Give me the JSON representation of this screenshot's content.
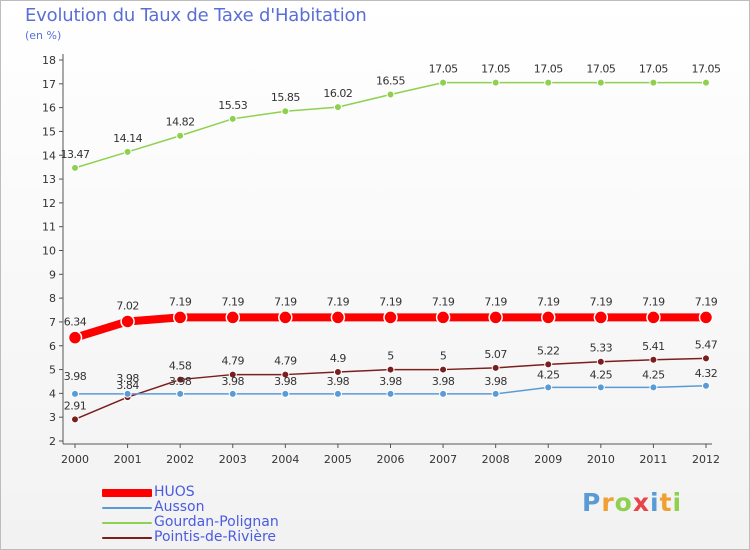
{
  "chart_data": {
    "type": "line",
    "title": "Evolution du Taux de Taxe d'Habitation",
    "subtitle": "(en %)",
    "ylim": [
      2,
      18
    ],
    "yticks": [
      2,
      3,
      4,
      5,
      6,
      7,
      8,
      9,
      10,
      11,
      12,
      13,
      14,
      15,
      16,
      17,
      18
    ],
    "x": [
      "2000",
      "2001",
      "2002",
      "2003",
      "2004",
      "2005",
      "2006",
      "2007",
      "2008",
      "2009",
      "2010",
      "2011",
      "2012"
    ],
    "grid": false,
    "legend_position": "bottom-left",
    "series": [
      {
        "name": "HUOS",
        "color": "#ff0000",
        "values": [
          6.34,
          7.02,
          7.19,
          7.19,
          7.19,
          7.19,
          7.19,
          7.19,
          7.19,
          7.19,
          7.19,
          7.19,
          7.19
        ],
        "labels": [
          "6.34",
          "7.02",
          "7.19",
          "7.19",
          "7.19",
          "7.19",
          "7.19",
          "7.19",
          "7.19",
          "7.19",
          "7.19",
          "7.19",
          "7.19"
        ]
      },
      {
        "name": "Ausson",
        "color": "#5b9bd5",
        "values": [
          3.98,
          3.98,
          3.98,
          3.98,
          3.98,
          3.98,
          3.98,
          3.98,
          3.98,
          4.25,
          4.25,
          4.25,
          4.32
        ],
        "labels": [
          "3.98",
          "3.98",
          "3.98",
          "3.98",
          "3.98",
          "3.98",
          "3.98",
          "3.98",
          "3.98",
          "4.25",
          "4.25",
          "4.25",
          "4.32"
        ]
      },
      {
        "name": "Gourdan-Polignan",
        "color": "#8fd14f",
        "values": [
          13.47,
          14.14,
          14.82,
          15.53,
          15.85,
          16.02,
          16.55,
          17.05,
          17.05,
          17.05,
          17.05,
          17.05,
          17.05
        ],
        "labels": [
          "13.47",
          "14.14",
          "14.82",
          "15.53",
          "15.85",
          "16.02",
          "16.55",
          "17.05",
          "17.05",
          "17.05",
          "17.05",
          "17.05",
          "17.05"
        ]
      },
      {
        "name": "Pointis-de-Rivière",
        "color": "#7b1e1e",
        "values": [
          2.91,
          3.84,
          4.58,
          4.79,
          4.79,
          4.9,
          5,
          5,
          5.07,
          5.22,
          5.33,
          5.41,
          5.47
        ],
        "labels": [
          "2.91",
          "3.84",
          "4.58",
          "4.79",
          "4.79",
          "4.9",
          "5",
          "5",
          "5.07",
          "5.22",
          "5.33",
          "5.41",
          "5.47"
        ]
      }
    ]
  },
  "logo": {
    "letters": [
      "P",
      "r",
      "o",
      "x",
      "i",
      "t",
      "i"
    ],
    "colors": [
      "#5b9bd5",
      "#f0a030",
      "#8fd14f",
      "#e8434b",
      "#5b9bd5",
      "#f0a030",
      "#8fd14f"
    ]
  }
}
